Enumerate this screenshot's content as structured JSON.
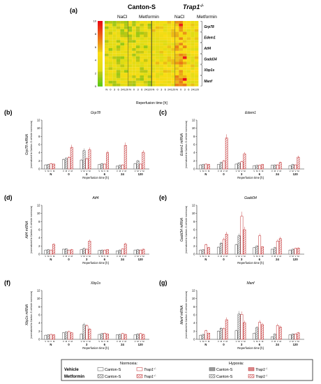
{
  "heatmap": {
    "panel_label": "(a)",
    "group_canton": "Canton-S",
    "group_trap": "Trap1",
    "group_trap_sup": "-/-",
    "treatment_nacl": "NaCl",
    "treatment_metformin": "Metformin",
    "xlabel": "Reperfusion time [h]",
    "col_labels": [
      "N",
      "0",
      "3",
      "6",
      "24",
      "120",
      "N",
      "0",
      "3",
      "6",
      "24",
      "120",
      "N",
      "0",
      "3",
      "6",
      "24",
      "120",
      "N",
      "0",
      "3",
      "6",
      "24",
      "120"
    ],
    "gene_labels": [
      "Grp78",
      "Edem1",
      "Atf4",
      "Gadd34",
      "Xbp1s",
      "Manf"
    ],
    "colorbar_ticks": [
      "10",
      "8",
      "6",
      "4",
      "2",
      "0"
    ]
  },
  "chart_data": [
    {
      "type": "bar",
      "panel": "(b)",
      "title": "Grp78",
      "ylabel": "Grp78 mRNA",
      "ylabel_sub": "(normalized to Canton-S vehicle normoxia)",
      "xlabel": "Reperfusion time [h]",
      "ylim": [
        0,
        12
      ],
      "yticks": [
        "0",
        "2",
        "4",
        "6",
        "8",
        "10",
        "12"
      ],
      "categories": [
        "N",
        "0",
        "3",
        "6",
        "24",
        "120"
      ],
      "series": [
        {
          "name": "Canton-S Vehicle",
          "values": [
            1.0,
            2.3,
            2.2,
            1.1,
            0.7,
            1.3
          ]
        },
        {
          "name": "Canton-S Metformin",
          "values": [
            1.1,
            2.6,
            4.5,
            1.3,
            0.9,
            2.0
          ]
        },
        {
          "name": "Trap1 Vehicle",
          "values": [
            1.3,
            2.8,
            2.5,
            1.2,
            1.0,
            1.2
          ]
        },
        {
          "name": "Trap1 Metformin",
          "values": [
            1.2,
            5.3,
            4.7,
            4.0,
            5.8,
            4.1
          ]
        }
      ]
    },
    {
      "type": "bar",
      "panel": "(c)",
      "title": "Edem1",
      "ylabel": "Edem1 mRNA",
      "ylabel_sub": "(normalized to Canton-S vehicle normoxia)",
      "xlabel": "Reperfusion time [h]",
      "ylim": [
        0,
        12
      ],
      "yticks": [
        "0",
        "2",
        "4",
        "6",
        "8",
        "10",
        "12"
      ],
      "categories": [
        "N",
        "0",
        "3",
        "6",
        "24",
        "120"
      ],
      "series": [
        {
          "name": "Canton-S Vehicle",
          "values": [
            1.0,
            1.1,
            1.2,
            0.8,
            0.9,
            0.8
          ]
        },
        {
          "name": "Canton-S Metformin",
          "values": [
            1.1,
            1.6,
            1.5,
            0.9,
            1.0,
            1.1
          ]
        },
        {
          "name": "Trap1 Vehicle",
          "values": [
            1.2,
            2.0,
            1.8,
            0.9,
            1.0,
            1.0
          ]
        },
        {
          "name": "Trap1 Metformin",
          "values": [
            1.1,
            7.6,
            3.7,
            1.1,
            1.6,
            2.9
          ]
        }
      ]
    },
    {
      "type": "bar",
      "panel": "(d)",
      "title": "Atf4",
      "ylabel": "Atf4 mRNA",
      "ylabel_sub": "(normalized to Canton-S vehicle normoxia)",
      "xlabel": "Reperfusion time [h]",
      "ylim": [
        0,
        12
      ],
      "yticks": [
        "0",
        "2",
        "4",
        "6",
        "8",
        "10",
        "12"
      ],
      "categories": [
        "N",
        "0",
        "3",
        "6",
        "24",
        "120"
      ],
      "series": [
        {
          "name": "Canton-S Vehicle",
          "values": [
            1.0,
            1.2,
            1.1,
            0.9,
            0.8,
            1.0
          ]
        },
        {
          "name": "Canton-S Metformin",
          "values": [
            1.1,
            1.3,
            1.4,
            1.0,
            1.0,
            1.1
          ]
        },
        {
          "name": "Trap1 Vehicle",
          "values": [
            1.0,
            1.0,
            1.2,
            1.0,
            1.3,
            1.0
          ]
        },
        {
          "name": "Trap1 Metformin",
          "values": [
            2.4,
            1.1,
            3.2,
            1.1,
            2.5,
            1.2
          ]
        }
      ]
    },
    {
      "type": "bar",
      "panel": "(e)",
      "title": "Gadd34",
      "ylabel": "Gadd34 mRNA",
      "ylabel_sub": "(normalized to Canton-S vehicle normoxia)",
      "xlabel": "Reperfusion time [h]",
      "ylim": [
        0,
        12
      ],
      "yticks": [
        "0",
        "2",
        "4",
        "6",
        "8",
        "10",
        "12"
      ],
      "categories": [
        "N",
        "0",
        "3",
        "6",
        "24",
        "120"
      ],
      "series": [
        {
          "name": "Canton-S Vehicle",
          "values": [
            1.0,
            1.7,
            2.3,
            1.6,
            1.2,
            1.0
          ]
        },
        {
          "name": "Canton-S Metformin",
          "values": [
            1.1,
            2.7,
            4.5,
            2.0,
            1.6,
            1.2
          ]
        },
        {
          "name": "Trap1 Vehicle",
          "values": [
            2.3,
            3.6,
            9.3,
            4.5,
            3.2,
            1.4
          ]
        },
        {
          "name": "Trap1 Metformin",
          "values": [
            1.6,
            4.9,
            6.0,
            1.8,
            3.8,
            1.5
          ]
        }
      ]
    },
    {
      "type": "bar",
      "panel": "(f)",
      "title": "Xbp1s",
      "ylabel": "Xbp1s mRNA",
      "ylabel_sub": "(normalized to Canton-S vehicle normoxia)",
      "xlabel": "Reperfusion time [h]",
      "ylim": [
        0,
        12
      ],
      "yticks": [
        "0",
        "2",
        "4",
        "6",
        "8",
        "10",
        "12"
      ],
      "categories": [
        "N",
        "0",
        "3",
        "6",
        "24",
        "120"
      ],
      "series": [
        {
          "name": "Canton-S Vehicle",
          "values": [
            1.0,
            1.6,
            1.3,
            1.2,
            1.1,
            1.1
          ]
        },
        {
          "name": "Canton-S Metformin",
          "values": [
            1.1,
            1.8,
            3.6,
            1.4,
            1.2,
            1.3
          ]
        },
        {
          "name": "Trap1 Vehicle",
          "values": [
            1.2,
            1.9,
            3.3,
            1.5,
            1.4,
            1.4
          ]
        },
        {
          "name": "Trap1 Metformin",
          "values": [
            1.1,
            1.6,
            2.5,
            1.3,
            1.2,
            1.2
          ]
        }
      ]
    },
    {
      "type": "bar",
      "panel": "(g)",
      "title": "Manf",
      "ylabel": "Manf mRNA",
      "ylabel_sub": "(normalized to Canton-S vehicle normoxia)",
      "xlabel": "Reperfusion time [h]",
      "ylim": [
        0,
        12
      ],
      "yticks": [
        "0",
        "2",
        "4",
        "6",
        "8",
        "10",
        "12"
      ],
      "categories": [
        "N",
        "0",
        "3",
        "6",
        "24",
        "120"
      ],
      "series": [
        {
          "name": "Canton-S Vehicle",
          "values": [
            1.0,
            2.0,
            2.1,
            1.5,
            0.6,
            1.1
          ]
        },
        {
          "name": "Canton-S Metformin",
          "values": [
            1.2,
            2.7,
            6.2,
            2.9,
            1.3,
            1.3
          ]
        },
        {
          "name": "Trap1 Vehicle",
          "values": [
            2.1,
            2.6,
            6.1,
            4.2,
            3.4,
            1.3
          ]
        },
        {
          "name": "Trap1 Metformin",
          "values": [
            1.5,
            4.8,
            4.1,
            3.6,
            3.0,
            1.6
          ]
        }
      ]
    }
  ],
  "legend": {
    "vehicle": "Vehicle",
    "metformin": "Metformin",
    "normoxia": "Normoxia:",
    "hypoxia": "Hypoxia:",
    "canton": "Canton-S",
    "trap": "Trap1",
    "trap_sup": "-/-"
  },
  "colors": {
    "canton": "#555555",
    "trap": "#c0282a"
  }
}
